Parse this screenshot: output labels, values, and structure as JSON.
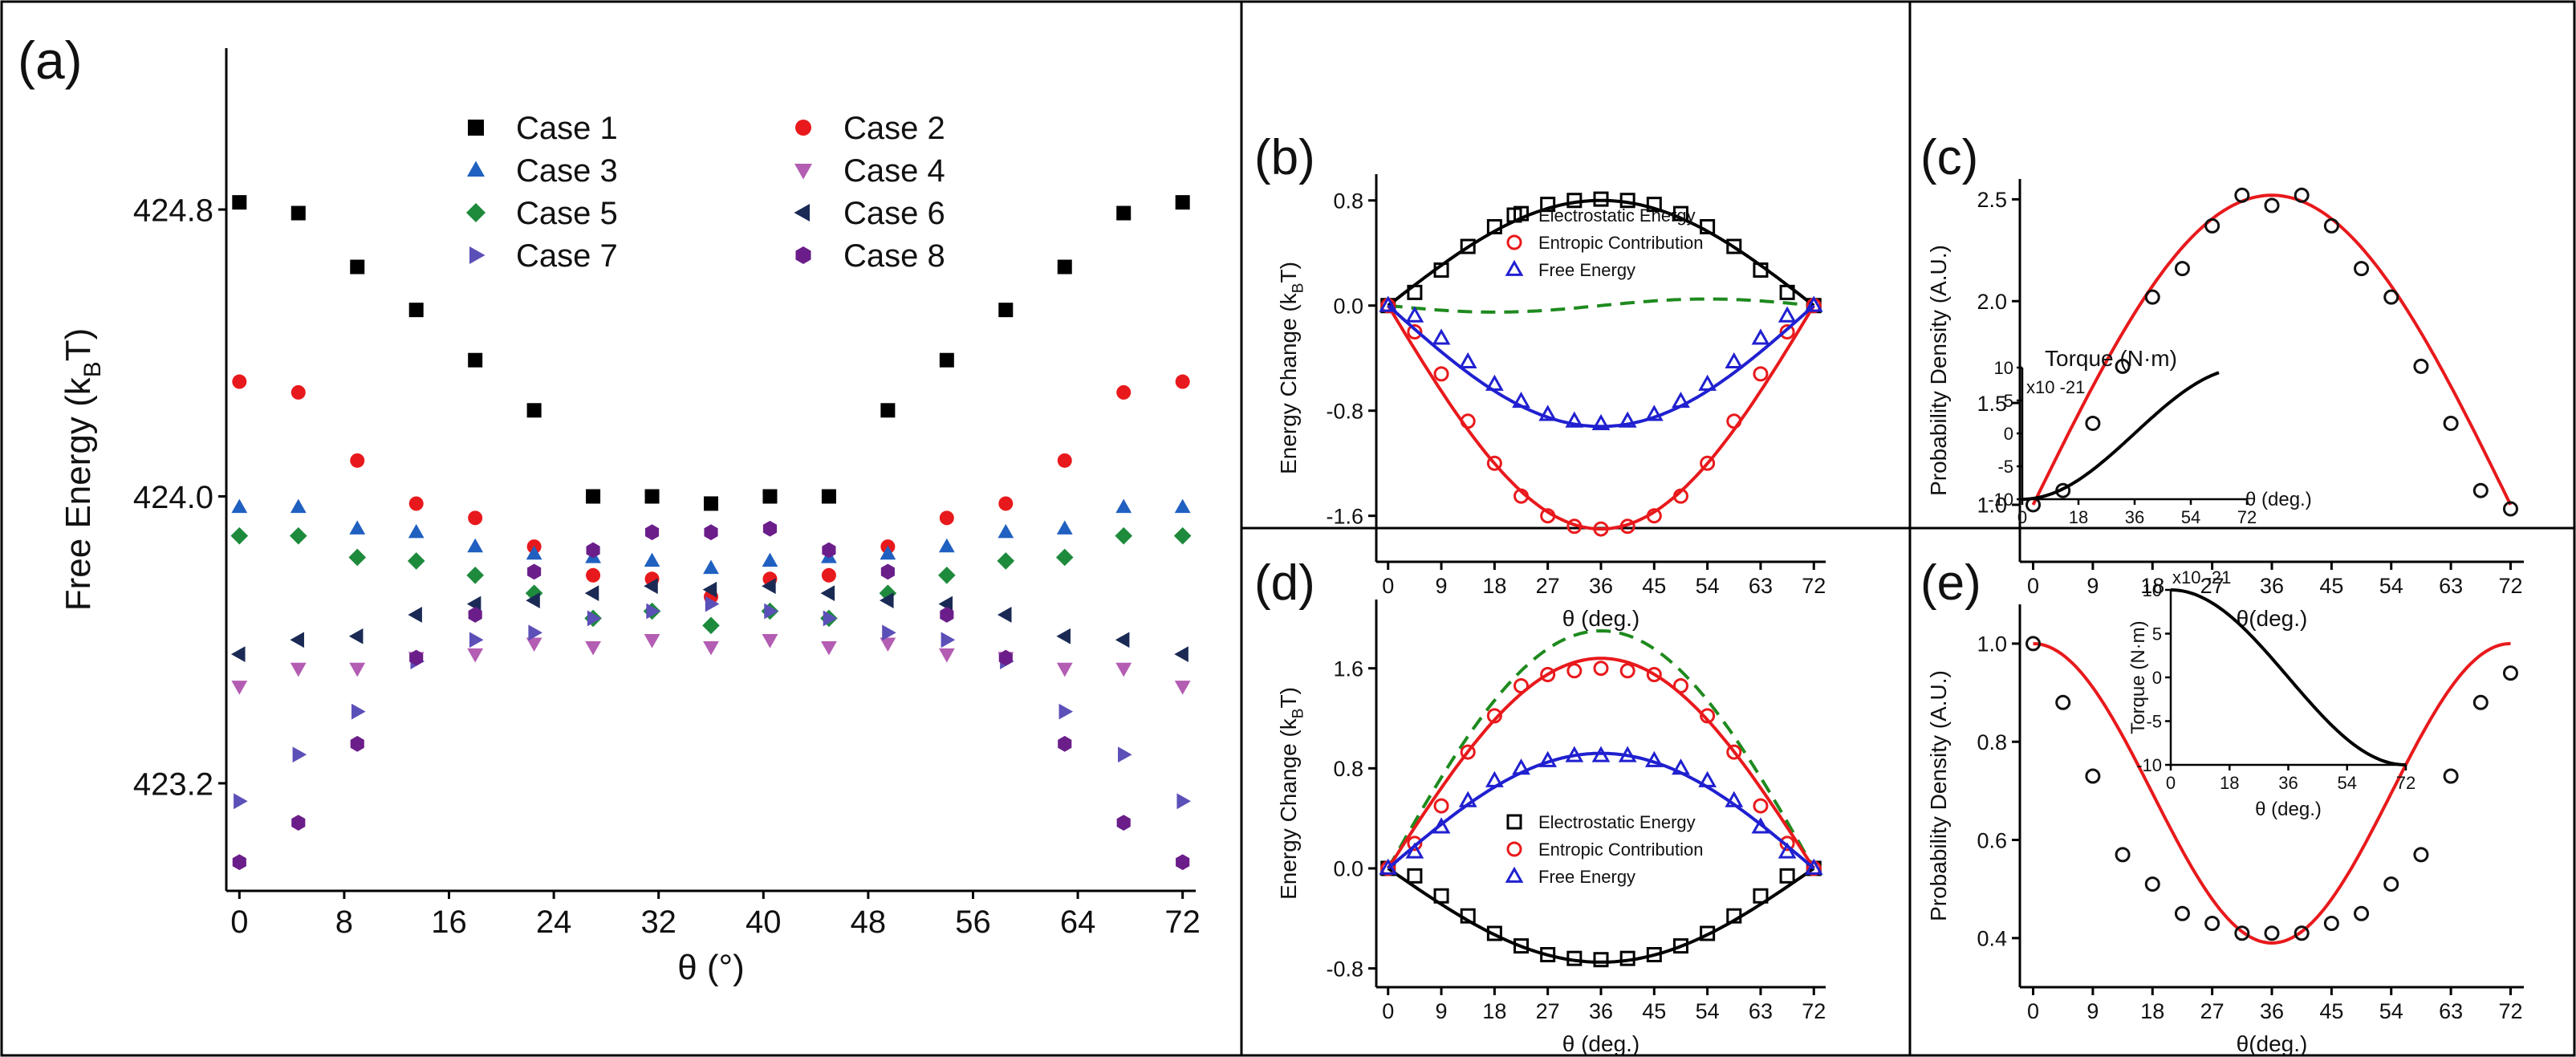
{
  "chart_data": [
    {
      "panel": "(a)",
      "type": "scatter",
      "xlabel": "θ (°)",
      "ylabel": "Free Energy (kBT)",
      "ylabel_main": "Free Energy (k",
      "ylabel_sub": "B",
      "ylabel_end": "T)",
      "xlim": [
        -1,
        73
      ],
      "ylim": [
        422.9,
        425.25
      ],
      "xticks": [
        0,
        8,
        16,
        24,
        32,
        40,
        48,
        56,
        64,
        72
      ],
      "yticks": [
        423.2,
        424.0,
        424.8
      ],
      "ytick_labels": [
        "423.2",
        "424.0",
        "424.8"
      ],
      "x": [
        0,
        4.5,
        9,
        13.5,
        18,
        22.5,
        27,
        31.5,
        36,
        40.5,
        45,
        49.5,
        54,
        58.5,
        63,
        67.5,
        72
      ],
      "series": [
        {
          "name": "Case 1",
          "marker": "square",
          "color": "#000000",
          "values": [
            424.82,
            424.79,
            424.64,
            424.52,
            424.38,
            424.24,
            424.0,
            424.0,
            423.98,
            424.0,
            424.0,
            424.24,
            424.38,
            424.52,
            424.64,
            424.79,
            424.82
          ]
        },
        {
          "name": "Case 2",
          "marker": "circle",
          "color": "#e8191c",
          "values": [
            424.32,
            424.29,
            424.1,
            423.98,
            423.94,
            423.86,
            423.78,
            423.77,
            423.72,
            423.77,
            423.78,
            423.86,
            423.94,
            423.98,
            424.1,
            424.29,
            424.32
          ]
        },
        {
          "name": "Case 3",
          "marker": "triangle-up",
          "color": "#2060c0",
          "values": [
            423.97,
            423.97,
            423.91,
            423.9,
            423.86,
            423.84,
            423.83,
            423.82,
            423.8,
            423.82,
            423.83,
            423.84,
            423.86,
            423.9,
            423.91,
            423.97,
            423.97
          ]
        },
        {
          "name": "Case 4",
          "marker": "triangle-down",
          "color": "#b35db3",
          "values": [
            423.47,
            423.52,
            423.52,
            423.55,
            423.56,
            423.59,
            423.58,
            423.6,
            423.58,
            423.6,
            423.58,
            423.59,
            423.56,
            423.55,
            423.52,
            423.52,
            423.47
          ]
        },
        {
          "name": "Case 5",
          "marker": "diamond",
          "color": "#1e8a3c",
          "values": [
            423.89,
            423.89,
            423.83,
            423.82,
            423.78,
            423.73,
            423.66,
            423.68,
            423.64,
            423.68,
            423.66,
            423.73,
            423.78,
            423.82,
            423.83,
            423.89,
            423.89
          ]
        },
        {
          "name": "Case 6",
          "marker": "triangle-left",
          "color": "#1a2a55",
          "values": [
            423.56,
            423.6,
            423.61,
            423.67,
            423.7,
            423.71,
            423.73,
            423.75,
            423.74,
            423.75,
            423.73,
            423.71,
            423.7,
            423.67,
            423.61,
            423.6,
            423.56
          ]
        },
        {
          "name": "Case 7",
          "marker": "triangle-right",
          "color": "#5b4fb8",
          "values": [
            423.15,
            423.28,
            423.4,
            423.54,
            423.6,
            423.62,
            423.66,
            423.68,
            423.7,
            423.68,
            423.66,
            423.62,
            423.6,
            423.54,
            423.4,
            423.28,
            423.15
          ]
        },
        {
          "name": "Case 8",
          "marker": "hexagon",
          "color": "#6b1e8a",
          "values": [
            422.98,
            423.09,
            423.31,
            423.55,
            423.67,
            423.79,
            423.85,
            423.9,
            423.9,
            423.91,
            423.85,
            423.79,
            423.67,
            423.55,
            423.31,
            423.09,
            422.98
          ]
        }
      ]
    },
    {
      "panel": "(b)",
      "type": "line",
      "xlabel": "θ (deg.)",
      "ylabel": "Energy Change (kBT)",
      "ylabel_main": "Energy Change (k",
      "ylabel_sub": "B",
      "ylabel_end": "T)",
      "xlim": [
        -2,
        74
      ],
      "ylim": [
        -1.95,
        1.0
      ],
      "xticks": [
        0,
        9,
        18,
        27,
        36,
        45,
        54,
        63,
        72
      ],
      "yticks": [
        -1.6,
        -0.8,
        0.0,
        0.8
      ],
      "ytick_labels": [
        "-1.6",
        "-0.8",
        "0.0",
        "0.8"
      ],
      "legend": [
        "Electrostatic Energy",
        "Entropic Contribution",
        "Free Energy"
      ],
      "x": [
        0,
        4.5,
        9,
        13.5,
        18,
        22.5,
        27,
        31.5,
        36,
        40.5,
        45,
        49.5,
        54,
        58.5,
        63,
        67.5,
        72
      ],
      "series": [
        {
          "name": "Electrostatic Energy",
          "marker": "open-square",
          "color": "#000000",
          "amplitude": 0.8,
          "values": [
            0.0,
            0.1,
            0.27,
            0.45,
            0.6,
            0.7,
            0.77,
            0.8,
            0.81,
            0.8,
            0.77,
            0.7,
            0.6,
            0.45,
            0.27,
            0.1,
            0.0
          ]
        },
        {
          "name": "Entropic Contribution",
          "marker": "open-circle",
          "color": "#e8191c",
          "amplitude": -1.7,
          "values": [
            0.0,
            -0.2,
            -0.52,
            -0.88,
            -1.2,
            -1.45,
            -1.6,
            -1.68,
            -1.7,
            -1.68,
            -1.6,
            -1.45,
            -1.2,
            -0.88,
            -0.52,
            -0.2,
            0.0
          ]
        },
        {
          "name": "Free Energy",
          "marker": "open-triangle",
          "color": "#2020d0",
          "amplitude": -0.92,
          "values": [
            0.0,
            -0.08,
            -0.25,
            -0.43,
            -0.6,
            -0.73,
            -0.83,
            -0.88,
            -0.9,
            -0.88,
            -0.83,
            -0.73,
            -0.6,
            -0.43,
            -0.25,
            -0.08,
            0.0
          ]
        }
      ]
    },
    {
      "panel": "(c)",
      "type": "line",
      "xlabel": "θ(deg.)",
      "ylabel": "Probability Density (A.U.)",
      "xlim": [
        -2,
        74
      ],
      "ylim": [
        0.72,
        2.6
      ],
      "xticks": [
        0,
        9,
        18,
        27,
        36,
        45,
        54,
        63,
        72
      ],
      "yticks": [
        1.0,
        1.5,
        2.0,
        2.5
      ],
      "ytick_labels": [
        "1.0",
        "1.5",
        "2.0",
        "2.5"
      ],
      "x": [
        0,
        4.5,
        9,
        13.5,
        18,
        22.5,
        27,
        31.5,
        36,
        40.5,
        45,
        49.5,
        54,
        58.5,
        63,
        67.5,
        72
      ],
      "series": [
        {
          "name": "",
          "marker": "open-circle",
          "color": "#e8191c",
          "values": [
            1.0,
            1.07,
            1.4,
            1.68,
            2.02,
            2.16,
            2.37,
            2.52,
            2.47,
            2.52,
            2.37,
            2.16,
            2.02,
            1.68,
            1.4,
            1.07,
            0.98
          ]
        }
      ],
      "inset": {
        "title": "Torque (N·m)",
        "scale_label": "x10 -21",
        "xlabel": "θ (deg.)",
        "xlim": [
          0,
          72
        ],
        "ylim": [
          -10,
          10
        ],
        "xticks": [
          0,
          18,
          36,
          54,
          72
        ],
        "yticks": [
          -10,
          -5,
          0,
          5,
          10
        ],
        "ytick_labels": [
          "-10",
          "-5",
          "0",
          "5",
          "10"
        ],
        "shape": "minus-cos",
        "curve_xmax": 63
      }
    },
    {
      "panel": "(d)",
      "type": "line",
      "xlabel": "θ (deg.)",
      "ylabel": "Energy Change (kBT)",
      "ylabel_main": "Energy Change (k",
      "ylabel_sub": "B",
      "ylabel_end": "T)",
      "xlim": [
        -2,
        74
      ],
      "ylim": [
        -0.95,
        2.15
      ],
      "xticks": [
        0,
        9,
        18,
        27,
        36,
        45,
        54,
        63,
        72
      ],
      "yticks": [
        -0.8,
        0.0,
        0.8,
        1.6
      ],
      "ytick_labels": [
        "-0.8",
        "0.0",
        "0.8",
        "1.6"
      ],
      "legend": [
        "Electrostatic Energy",
        "Entropic Contribution",
        "Free Energy"
      ],
      "x": [
        0,
        4.5,
        9,
        13.5,
        18,
        22.5,
        27,
        31.5,
        36,
        40.5,
        45,
        49.5,
        54,
        58.5,
        63,
        67.5,
        72
      ],
      "series": [
        {
          "name": "Electrostatic Energy",
          "marker": "open-square",
          "color": "#000000",
          "amplitude": -0.75,
          "values": [
            0.0,
            -0.06,
            -0.22,
            -0.38,
            -0.52,
            -0.62,
            -0.69,
            -0.72,
            -0.73,
            -0.72,
            -0.69,
            -0.62,
            -0.52,
            -0.38,
            -0.22,
            -0.06,
            0.0
          ]
        },
        {
          "name": "Entropic Contribution",
          "marker": "open-circle",
          "color": "#e8191c",
          "amplitude": 1.68,
          "values": [
            0.0,
            0.2,
            0.5,
            0.93,
            1.22,
            1.46,
            1.55,
            1.58,
            1.6,
            1.58,
            1.55,
            1.46,
            1.22,
            0.93,
            0.5,
            0.2,
            0.0
          ]
        },
        {
          "name": "Free Energy",
          "marker": "open-triangle",
          "color": "#2020d0",
          "amplitude": 0.92,
          "values": [
            0.0,
            0.13,
            0.33,
            0.54,
            0.7,
            0.8,
            0.86,
            0.9,
            0.9,
            0.9,
            0.86,
            0.8,
            0.7,
            0.54,
            0.33,
            0.13,
            0.0
          ]
        }
      ]
    },
    {
      "panel": "(e)",
      "type": "line",
      "xlabel": "θ(deg.)",
      "ylabel": "Probability Density (A.U.)",
      "xlim": [
        -2,
        74
      ],
      "ylim": [
        0.3,
        1.08
      ],
      "xticks": [
        0,
        9,
        18,
        27,
        36,
        45,
        54,
        63,
        72
      ],
      "yticks": [
        0.4,
        0.6,
        0.8,
        1.0
      ],
      "ytick_labels": [
        "0.4",
        "0.6",
        "0.8",
        "1.0"
      ],
      "x": [
        0,
        4.5,
        9,
        13.5,
        18,
        22.5,
        27,
        31.5,
        36,
        40.5,
        45,
        49.5,
        54,
        58.5,
        63,
        67.5,
        72
      ],
      "series": [
        {
          "name": "",
          "marker": "open-circle",
          "color": "#e8191c",
          "values": [
            1.0,
            0.88,
            0.73,
            0.57,
            0.51,
            0.45,
            0.43,
            0.41,
            0.41,
            0.41,
            0.43,
            0.45,
            0.51,
            0.57,
            0.73,
            0.88,
            0.94
          ]
        }
      ],
      "inset": {
        "title": "Torque (N·m)",
        "scale_label": "x10 -21",
        "xlabel": "θ (deg.)",
        "xlim": [
          0,
          72
        ],
        "ylim": [
          -10,
          10
        ],
        "xticks": [
          0,
          18,
          36,
          54,
          72
        ],
        "yticks": [
          -10,
          -5,
          0,
          5,
          10
        ],
        "ytick_labels": [
          "-10",
          "-5",
          "0",
          "5",
          "10"
        ],
        "shape": "cos",
        "curve_xmax": 72
      }
    }
  ]
}
